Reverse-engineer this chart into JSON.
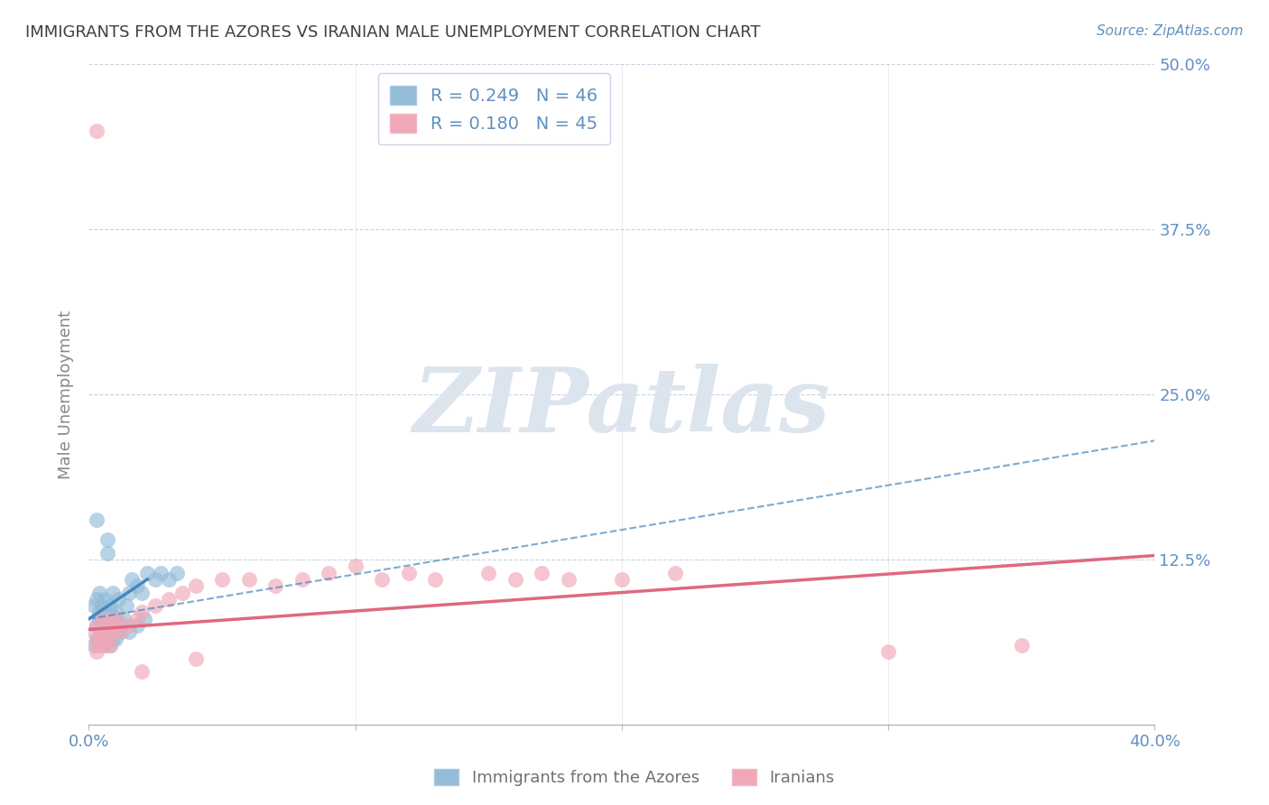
{
  "title": "IMMIGRANTS FROM THE AZORES VS IRANIAN MALE UNEMPLOYMENT CORRELATION CHART",
  "source": "Source: ZipAtlas.com",
  "ylabel": "Male Unemployment",
  "xlim": [
    0.0,
    0.4
  ],
  "ylim": [
    0.0,
    0.5
  ],
  "yticks": [
    0.0,
    0.125,
    0.25,
    0.375,
    0.5
  ],
  "ytick_labels": [
    "",
    "12.5%",
    "25.0%",
    "37.5%",
    "50.0%"
  ],
  "xticks": [
    0.0,
    0.1,
    0.2,
    0.3,
    0.4
  ],
  "xtick_labels": [
    "0.0%",
    "",
    "",
    "",
    "40.0%"
  ],
  "watermark_text": "ZIPatlas",
  "blue_color": "#92bcd8",
  "pink_color": "#f0a8b8",
  "blue_line_color": "#4488c0",
  "pink_line_color": "#e06880",
  "grid_color": "#c8d4e4",
  "title_color": "#404040",
  "label_color": "#6090c0",
  "watermark_color": "#dce4ee",
  "azores_x": [
    0.002,
    0.003,
    0.004,
    0.004,
    0.005,
    0.005,
    0.006,
    0.006,
    0.007,
    0.007,
    0.008,
    0.008,
    0.009,
    0.01,
    0.01,
    0.011,
    0.012,
    0.013,
    0.014,
    0.015,
    0.016,
    0.018,
    0.02,
    0.022,
    0.025,
    0.027,
    0.03,
    0.033,
    0.002,
    0.003,
    0.004,
    0.005,
    0.006,
    0.003,
    0.004,
    0.005,
    0.006,
    0.007,
    0.008,
    0.009,
    0.01,
    0.012,
    0.015,
    0.018,
    0.021,
    0.003
  ],
  "azores_y": [
    0.09,
    0.095,
    0.085,
    0.1,
    0.09,
    0.08,
    0.095,
    0.085,
    0.14,
    0.13,
    0.09,
    0.085,
    0.1,
    0.085,
    0.08,
    0.095,
    0.075,
    0.08,
    0.09,
    0.1,
    0.11,
    0.105,
    0.1,
    0.115,
    0.11,
    0.115,
    0.11,
    0.115,
    0.06,
    0.065,
    0.065,
    0.07,
    0.07,
    0.075,
    0.08,
    0.075,
    0.06,
    0.065,
    0.06,
    0.065,
    0.065,
    0.07,
    0.07,
    0.075,
    0.08,
    0.155
  ],
  "iranians_x": [
    0.002,
    0.003,
    0.004,
    0.005,
    0.006,
    0.007,
    0.008,
    0.009,
    0.01,
    0.011,
    0.012,
    0.015,
    0.018,
    0.02,
    0.025,
    0.03,
    0.035,
    0.04,
    0.05,
    0.06,
    0.07,
    0.08,
    0.09,
    0.1,
    0.11,
    0.12,
    0.13,
    0.15,
    0.16,
    0.17,
    0.18,
    0.2,
    0.22,
    0.003,
    0.004,
    0.005,
    0.006,
    0.007,
    0.008,
    0.003,
    0.3,
    0.35,
    0.02,
    0.04,
    0.003
  ],
  "iranians_y": [
    0.07,
    0.075,
    0.065,
    0.08,
    0.07,
    0.075,
    0.08,
    0.07,
    0.075,
    0.08,
    0.07,
    0.075,
    0.08,
    0.085,
    0.09,
    0.095,
    0.1,
    0.105,
    0.11,
    0.11,
    0.105,
    0.11,
    0.115,
    0.12,
    0.11,
    0.115,
    0.11,
    0.115,
    0.11,
    0.115,
    0.11,
    0.11,
    0.115,
    0.06,
    0.06,
    0.065,
    0.06,
    0.065,
    0.06,
    0.055,
    0.055,
    0.06,
    0.04,
    0.05,
    0.45
  ],
  "azores_trend_solid_x0": 0.0,
  "azores_trend_solid_x1": 0.022,
  "azores_trend_solid_y0": 0.08,
  "azores_trend_solid_y1": 0.11,
  "azores_trend_dash_x0": 0.0,
  "azores_trend_dash_x1": 0.4,
  "azores_trend_dash_y0": 0.08,
  "azores_trend_dash_y1": 0.215,
  "iranians_trend_x0": 0.0,
  "iranians_trend_x1": 0.4,
  "iranians_trend_y0": 0.072,
  "iranians_trend_y1": 0.128,
  "legend_azores_label": "R = 0.249   N = 46",
  "legend_iranians_label": "R = 0.180   N = 45",
  "bottom_azores_label": "Immigrants from the Azores",
  "bottom_iranians_label": "Iranians"
}
